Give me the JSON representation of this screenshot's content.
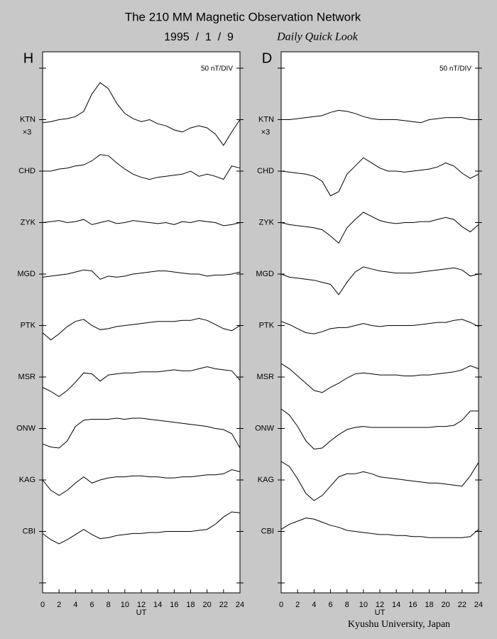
{
  "header": {
    "title": "The 210 MM Magnetic Observation Network",
    "date": "1995  /  1  /  9",
    "subtitle": "Daily Quick Look"
  },
  "footer": "Kyushu University, Japan",
  "chart_data": [
    {
      "type": "line",
      "panel_label": "H",
      "scale_label": "50 nT/DIV",
      "nt_per_div": 50,
      "x_label": "UT",
      "color": "#000000",
      "x": [
        0,
        1,
        2,
        3,
        4,
        5,
        6,
        7,
        8,
        9,
        10,
        11,
        12,
        13,
        14,
        15,
        16,
        17,
        18,
        19,
        20,
        21,
        22,
        23,
        24
      ],
      "xlim": [
        0,
        24
      ],
      "xticks": [
        0,
        2,
        4,
        6,
        8,
        10,
        12,
        14,
        16,
        18,
        20,
        22,
        24
      ],
      "series": [
        {
          "name": "KTN",
          "note": "×3",
          "values": [
            -3,
            -2,
            0,
            1,
            3,
            8,
            25,
            36,
            30,
            16,
            6,
            1,
            -2,
            0,
            -4,
            -6,
            -10,
            -12,
            -8,
            -6,
            -8,
            -14,
            -25,
            -12,
            0
          ]
        },
        {
          "name": "CHD",
          "values": [
            0,
            0,
            2,
            3,
            5,
            6,
            10,
            16,
            15,
            8,
            2,
            -3,
            -6,
            -8,
            -6,
            -5,
            -4,
            -3,
            0,
            -5,
            -3,
            -5,
            -8,
            5,
            3
          ]
        },
        {
          "name": "ZYK",
          "values": [
            0,
            1,
            2,
            0,
            1,
            3,
            -2,
            0,
            2,
            -1,
            0,
            2,
            1,
            0,
            -1,
            0,
            -2,
            1,
            0,
            2,
            1,
            0,
            -3,
            -2,
            0
          ]
        },
        {
          "name": "MGD",
          "values": [
            -3,
            -2,
            -1,
            0,
            2,
            4,
            3,
            -5,
            -2,
            -3,
            -2,
            0,
            1,
            2,
            3,
            3,
            2,
            1,
            0,
            0,
            -2,
            -1,
            -1,
            0,
            2
          ]
        },
        {
          "name": "PTK",
          "values": [
            -7,
            -14,
            -8,
            -1,
            4,
            6,
            0,
            -4,
            -3,
            -1,
            0,
            1,
            2,
            3,
            4,
            4,
            4,
            5,
            5,
            7,
            5,
            1,
            -3,
            -5,
            0
          ]
        },
        {
          "name": "MSR",
          "values": [
            -10,
            -14,
            -19,
            -13,
            -5,
            4,
            3,
            -4,
            2,
            3,
            4,
            4,
            5,
            5,
            5,
            6,
            7,
            6,
            6,
            8,
            10,
            8,
            7,
            6,
            -3
          ]
        },
        {
          "name": "ONW",
          "values": [
            -15,
            -18,
            -19,
            -12,
            2,
            8,
            9,
            9,
            9,
            10,
            9,
            10,
            10,
            9,
            8,
            7,
            6,
            5,
            4,
            3,
            2,
            0,
            -1,
            -5,
            -19
          ]
        },
        {
          "name": "KAG",
          "values": [
            0,
            -10,
            -15,
            -10,
            -3,
            3,
            -3,
            0,
            2,
            3,
            3,
            4,
            4,
            3,
            3,
            2,
            2,
            3,
            3,
            4,
            5,
            5,
            6,
            10,
            8
          ]
        },
        {
          "name": "CBI",
          "values": [
            -2,
            -8,
            -12,
            -8,
            -3,
            2,
            -3,
            -7,
            -6,
            -4,
            -3,
            -2,
            -2,
            -1,
            -1,
            0,
            0,
            0,
            0,
            1,
            2,
            7,
            14,
            19,
            18
          ]
        }
      ]
    },
    {
      "type": "line",
      "panel_label": "D",
      "scale_label": "50 nT/DIV",
      "nt_per_div": 50,
      "x_label": "UT",
      "color": "#000000",
      "x": [
        0,
        1,
        2,
        3,
        4,
        5,
        6,
        7,
        8,
        9,
        10,
        11,
        12,
        13,
        14,
        15,
        16,
        17,
        18,
        19,
        20,
        21,
        22,
        23,
        24
      ],
      "xlim": [
        0,
        24
      ],
      "xticks": [
        0,
        2,
        4,
        6,
        8,
        10,
        12,
        14,
        16,
        18,
        20,
        22,
        24
      ],
      "series": [
        {
          "name": "KTN",
          "note": "×3",
          "values": [
            0,
            0,
            1,
            2,
            3,
            4,
            7,
            9,
            8,
            6,
            3,
            1,
            0,
            0,
            0,
            -1,
            -2,
            -3,
            0,
            1,
            2,
            2,
            2,
            0,
            0
          ]
        },
        {
          "name": "CHD",
          "values": [
            0,
            -1,
            -2,
            -3,
            -5,
            -10,
            -24,
            -20,
            -3,
            5,
            13,
            8,
            3,
            0,
            0,
            -1,
            0,
            1,
            2,
            4,
            8,
            5,
            -2,
            -7,
            -3
          ]
        },
        {
          "name": "ZYK",
          "values": [
            0,
            -2,
            -3,
            -4,
            -5,
            -7,
            -13,
            -20,
            -5,
            3,
            10,
            6,
            2,
            0,
            -1,
            0,
            0,
            1,
            1,
            3,
            5,
            3,
            -4,
            -9,
            -2
          ]
        },
        {
          "name": "MGD",
          "values": [
            0,
            -3,
            -4,
            -5,
            -6,
            -8,
            -10,
            -20,
            -8,
            2,
            7,
            5,
            3,
            2,
            1,
            1,
            1,
            2,
            3,
            4,
            5,
            6,
            4,
            -2,
            0
          ]
        },
        {
          "name": "PTK",
          "values": [
            4,
            1,
            -3,
            -7,
            -8,
            -6,
            -3,
            -2,
            -2,
            0,
            2,
            0,
            -1,
            0,
            0,
            0,
            0,
            1,
            2,
            3,
            3,
            5,
            6,
            3,
            -1
          ]
        },
        {
          "name": "MSR",
          "values": [
            13,
            8,
            1,
            -6,
            -13,
            -15,
            -10,
            -6,
            -1,
            3,
            4,
            3,
            2,
            2,
            2,
            1,
            1,
            2,
            2,
            3,
            4,
            5,
            7,
            11,
            8
          ]
        },
        {
          "name": "ONW",
          "values": [
            19,
            13,
            2,
            -12,
            -20,
            -19,
            -12,
            -6,
            -1,
            1,
            2,
            1,
            1,
            1,
            1,
            1,
            1,
            1,
            1,
            2,
            2,
            3,
            8,
            17,
            17
          ]
        },
        {
          "name": "KAG",
          "values": [
            18,
            13,
            1,
            -13,
            -20,
            -15,
            -6,
            3,
            6,
            6,
            8,
            6,
            3,
            2,
            1,
            0,
            -1,
            -2,
            -3,
            -3,
            -4,
            -5,
            -6,
            4,
            17
          ]
        },
        {
          "name": "CBI",
          "values": [
            2,
            7,
            10,
            13,
            12,
            9,
            6,
            4,
            1,
            0,
            -1,
            -2,
            -3,
            -3,
            -4,
            -4,
            -5,
            -5,
            -6,
            -6,
            -6,
            -6,
            -6,
            -5,
            2
          ]
        }
      ]
    }
  ]
}
